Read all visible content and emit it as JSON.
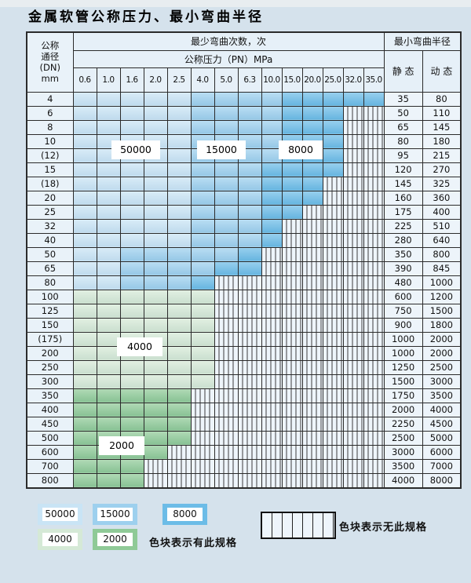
{
  "page": {
    "title": "金属软管公称压力、最小弯曲半径"
  },
  "colors": {
    "b1": "#c9e4f5",
    "b2": "#9dd0ee",
    "b3": "#6cbce7",
    "g1": "#d5e9d6",
    "g2": "#8fca97",
    "hatch_bg": "#eef5fb",
    "header_bg": "#e6f0f8",
    "dn_bg": "#e9f2f9",
    "radius_bg": "#edf4fa",
    "grid": "#2b2b2b",
    "page_bg": "#d5e2ec",
    "top_strip": "#e8edf0"
  },
  "table": {
    "dn_header": {
      "line1": "公称",
      "line2": "通径",
      "line3": "(DN)",
      "line4": "mm"
    },
    "bend_times_header": "最少弯曲次数，次",
    "pressure_header": "公称压力（PN）MPa",
    "radius_header": "最小弯曲半径",
    "static_header": "静 态",
    "dynamic_header": "动 态",
    "pressures": [
      "0.6",
      "1.0",
      "1.6",
      "2.0",
      "2.5",
      "4.0",
      "5.0",
      "6.3",
      "10.0",
      "15.0",
      "20.0",
      "25.0",
      "32.0",
      "35.0"
    ],
    "cell_states_legend": {
      "b1": "50000次",
      "b2": "15000次",
      "b3": "8000次",
      "g1": "4000次",
      "g2": "2000次",
      "x": "无此规格"
    },
    "rows": [
      {
        "dn": "4",
        "cells": [
          "b1",
          "b1",
          "b1",
          "b1",
          "b1",
          "b2",
          "b2",
          "b2",
          "b2",
          "b3",
          "b3",
          "b3",
          "b3",
          "b3"
        ],
        "static": "35",
        "dynamic": "80"
      },
      {
        "dn": "6",
        "cells": [
          "b1",
          "b1",
          "b1",
          "b1",
          "b1",
          "b2",
          "b2",
          "b2",
          "b2",
          "b3",
          "b3",
          "b3",
          "x",
          "x"
        ],
        "static": "50",
        "dynamic": "110"
      },
      {
        "dn": "8",
        "cells": [
          "b1",
          "b1",
          "b1",
          "b1",
          "b1",
          "b2",
          "b2",
          "b2",
          "b2",
          "b3",
          "b3",
          "b3",
          "x",
          "x"
        ],
        "static": "65",
        "dynamic": "145"
      },
      {
        "dn": "10",
        "cells": [
          "b1",
          "b1",
          "b1",
          "b1",
          "b1",
          "b2",
          "b2",
          "b2",
          "b2",
          "b3",
          "b3",
          "b3",
          "x",
          "x"
        ],
        "static": "80",
        "dynamic": "180"
      },
      {
        "dn": "(12)",
        "cells": [
          "b1",
          "b1",
          "b1",
          "b1",
          "b1",
          "b2",
          "b2",
          "b2",
          "b2",
          "b3",
          "b3",
          "b3",
          "x",
          "x"
        ],
        "static": "95",
        "dynamic": "215"
      },
      {
        "dn": "15",
        "cells": [
          "b1",
          "b1",
          "b1",
          "b1",
          "b1",
          "b2",
          "b2",
          "b2",
          "b3",
          "b3",
          "b3",
          "b3",
          "x",
          "x"
        ],
        "static": "120",
        "dynamic": "270"
      },
      {
        "dn": "(18)",
        "cells": [
          "b1",
          "b1",
          "b1",
          "b1",
          "b1",
          "b2",
          "b2",
          "b2",
          "b3",
          "b3",
          "b3",
          "x",
          "x",
          "x"
        ],
        "static": "145",
        "dynamic": "325"
      },
      {
        "dn": "20",
        "cells": [
          "b1",
          "b1",
          "b1",
          "b1",
          "b1",
          "b2",
          "b2",
          "b2",
          "b3",
          "b3",
          "b3",
          "x",
          "x",
          "x"
        ],
        "static": "160",
        "dynamic": "360"
      },
      {
        "dn": "25",
        "cells": [
          "b1",
          "b1",
          "b1",
          "b1",
          "b1",
          "b2",
          "b2",
          "b2",
          "b3",
          "b3",
          "x",
          "x",
          "x",
          "x"
        ],
        "static": "175",
        "dynamic": "400"
      },
      {
        "dn": "32",
        "cells": [
          "b1",
          "b1",
          "b1",
          "b1",
          "b1",
          "b2",
          "b2",
          "b2",
          "b3",
          "x",
          "x",
          "x",
          "x",
          "x"
        ],
        "static": "225",
        "dynamic": "510"
      },
      {
        "dn": "40",
        "cells": [
          "b1",
          "b1",
          "b1",
          "b1",
          "b1",
          "b2",
          "b2",
          "b2",
          "b3",
          "x",
          "x",
          "x",
          "x",
          "x"
        ],
        "static": "280",
        "dynamic": "640"
      },
      {
        "dn": "50",
        "cells": [
          "b1",
          "b1",
          "b2",
          "b2",
          "b2",
          "b2",
          "b2",
          "b3",
          "x",
          "x",
          "x",
          "x",
          "x",
          "x"
        ],
        "static": "350",
        "dynamic": "800"
      },
      {
        "dn": "65",
        "cells": [
          "b1",
          "b1",
          "b2",
          "b2",
          "b2",
          "b2",
          "b3",
          "b3",
          "x",
          "x",
          "x",
          "x",
          "x",
          "x"
        ],
        "static": "390",
        "dynamic": "845"
      },
      {
        "dn": "80",
        "cells": [
          "b1",
          "b1",
          "b2",
          "b2",
          "b2",
          "b3",
          "x",
          "x",
          "x",
          "x",
          "x",
          "x",
          "x",
          "x"
        ],
        "static": "480",
        "dynamic": "1000"
      },
      {
        "dn": "100",
        "cells": [
          "g1",
          "g1",
          "g1",
          "g1",
          "g1",
          "g1",
          "x",
          "x",
          "x",
          "x",
          "x",
          "x",
          "x",
          "x"
        ],
        "static": "600",
        "dynamic": "1200"
      },
      {
        "dn": "125",
        "cells": [
          "g1",
          "g1",
          "g1",
          "g1",
          "g1",
          "g1",
          "x",
          "x",
          "x",
          "x",
          "x",
          "x",
          "x",
          "x"
        ],
        "static": "750",
        "dynamic": "1500"
      },
      {
        "dn": "150",
        "cells": [
          "g1",
          "g1",
          "g1",
          "g1",
          "g1",
          "g1",
          "x",
          "x",
          "x",
          "x",
          "x",
          "x",
          "x",
          "x"
        ],
        "static": "900",
        "dynamic": "1800"
      },
      {
        "dn": "(175)",
        "cells": [
          "g1",
          "g1",
          "g1",
          "g1",
          "g1",
          "g1",
          "x",
          "x",
          "x",
          "x",
          "x",
          "x",
          "x",
          "x"
        ],
        "static": "1000",
        "dynamic": "2000"
      },
      {
        "dn": "200",
        "cells": [
          "g1",
          "g1",
          "g1",
          "g1",
          "g1",
          "g1",
          "x",
          "x",
          "x",
          "x",
          "x",
          "x",
          "x",
          "x"
        ],
        "static": "1000",
        "dynamic": "2000"
      },
      {
        "dn": "250",
        "cells": [
          "g1",
          "g1",
          "g1",
          "g1",
          "g1",
          "g1",
          "x",
          "x",
          "x",
          "x",
          "x",
          "x",
          "x",
          "x"
        ],
        "static": "1250",
        "dynamic": "2500"
      },
      {
        "dn": "300",
        "cells": [
          "g1",
          "g1",
          "g1",
          "g1",
          "g1",
          "g1",
          "x",
          "x",
          "x",
          "x",
          "x",
          "x",
          "x",
          "x"
        ],
        "static": "1500",
        "dynamic": "3000"
      },
      {
        "dn": "350",
        "cells": [
          "g2",
          "g2",
          "g2",
          "g2",
          "g2",
          "x",
          "x",
          "x",
          "x",
          "x",
          "x",
          "x",
          "x",
          "x"
        ],
        "static": "1750",
        "dynamic": "3500"
      },
      {
        "dn": "400",
        "cells": [
          "g2",
          "g2",
          "g2",
          "g2",
          "g2",
          "x",
          "x",
          "x",
          "x",
          "x",
          "x",
          "x",
          "x",
          "x"
        ],
        "static": "2000",
        "dynamic": "4000"
      },
      {
        "dn": "450",
        "cells": [
          "g2",
          "g2",
          "g2",
          "g2",
          "g2",
          "x",
          "x",
          "x",
          "x",
          "x",
          "x",
          "x",
          "x",
          "x"
        ],
        "static": "2250",
        "dynamic": "4500"
      },
      {
        "dn": "500",
        "cells": [
          "g2",
          "g2",
          "g2",
          "g2",
          "g2",
          "x",
          "x",
          "x",
          "x",
          "x",
          "x",
          "x",
          "x",
          "x"
        ],
        "static": "2500",
        "dynamic": "5000"
      },
      {
        "dn": "600",
        "cells": [
          "g2",
          "g2",
          "g2",
          "g2",
          "x",
          "x",
          "x",
          "x",
          "x",
          "x",
          "x",
          "x",
          "x",
          "x"
        ],
        "static": "3000",
        "dynamic": "6000"
      },
      {
        "dn": "700",
        "cells": [
          "g2",
          "g2",
          "g2",
          "x",
          "x",
          "x",
          "x",
          "x",
          "x",
          "x",
          "x",
          "x",
          "x",
          "x"
        ],
        "static": "3500",
        "dynamic": "7000"
      },
      {
        "dn": "800",
        "cells": [
          "g2",
          "g2",
          "g2",
          "x",
          "x",
          "x",
          "x",
          "x",
          "x",
          "x",
          "x",
          "x",
          "x",
          "x"
        ],
        "static": "4000",
        "dynamic": "8000"
      }
    ]
  },
  "overlays": [
    {
      "text": "50000"
    },
    {
      "text": "15000"
    },
    {
      "text": "8000"
    },
    {
      "text": "4000"
    },
    {
      "text": "2000"
    }
  ],
  "legend": {
    "items": [
      {
        "value": "50000"
      },
      {
        "value": "15000"
      },
      {
        "value": "8000"
      },
      {
        "value": "4000"
      },
      {
        "value": "2000"
      }
    ],
    "present_note": "色块表示有此规格",
    "absent_note": "色块表示无此规格"
  }
}
